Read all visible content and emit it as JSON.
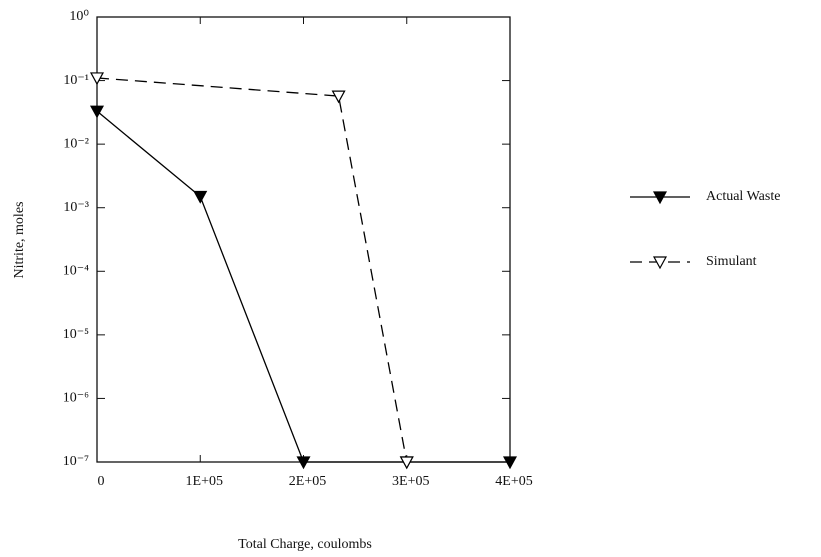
{
  "chart_data": {
    "type": "line",
    "x_label": "Total Charge, coulombs",
    "y_label": "Nitrite, moles",
    "log_y": true,
    "legend": "right",
    "xlim": [
      0,
      400000
    ],
    "xticks": [
      0,
      {
        "value": 100000,
        "label": "1E+05"
      },
      {
        "value": 200000,
        "label": "2E+05"
      },
      {
        "value": 300000,
        "label": "3E+05"
      },
      {
        "value": 400000,
        "label": "4E+05"
      }
    ],
    "ylim": [
      1e-07,
      1
    ],
    "yticks": [
      {
        "value": 1e-07,
        "label": "10⁻⁷"
      },
      {
        "value": 1e-06,
        "label": "10⁻⁶"
      },
      {
        "value": 1e-05,
        "label": "10⁻⁵"
      },
      {
        "value": 0.0001,
        "label": "10⁻⁴"
      },
      {
        "value": 0.001,
        "label": "10⁻³"
      },
      {
        "value": 0.01,
        "label": "10⁻²"
      },
      {
        "value": 0.1,
        "label": "10⁻¹"
      },
      {
        "value": 1,
        "label": "10⁰"
      }
    ],
    "series": [
      {
        "name": "Actual Waste",
        "color": "#000000",
        "line_style": "solid",
        "marker": "filled",
        "x": [
          0,
          100000,
          200000,
          300000,
          400000
        ],
        "values": [
          0.033,
          0.0015,
          1e-07,
          1e-07,
          1e-07
        ]
      },
      {
        "name": "Simulant",
        "color": "#000000",
        "line_style": "dashed",
        "marker": "open",
        "x": [
          0,
          234000,
          300000
        ],
        "values": [
          0.11,
          0.057,
          1e-07
        ]
      }
    ]
  }
}
